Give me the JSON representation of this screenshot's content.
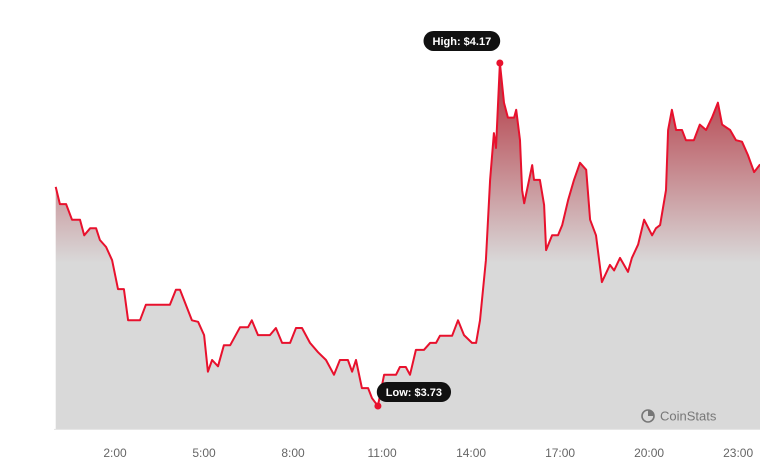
{
  "chart_data": {
    "type": "area",
    "color": "#e8112d",
    "watermark": "CoinStats",
    "xlim": [
      0,
      23.74
    ],
    "ylim": [
      3.7,
      4.22
    ],
    "xticks": [
      {
        "value": 2,
        "label": "2:00"
      },
      {
        "value": 5,
        "label": "5:00"
      },
      {
        "value": 8,
        "label": "8:00"
      },
      {
        "value": 11,
        "label": "11:00"
      },
      {
        "value": 14,
        "label": "14:00"
      },
      {
        "value": 17,
        "label": "17:00"
      },
      {
        "value": 20,
        "label": "20:00"
      },
      {
        "value": 23,
        "label": "23:00"
      }
    ],
    "x": [
      0,
      0.14,
      0.35,
      0.55,
      0.82,
      0.96,
      1.16,
      1.36,
      1.49,
      1.7,
      1.9,
      2.1,
      2.3,
      2.44,
      2.84,
      3.04,
      3.85,
      4.05,
      4.19,
      4.59,
      4.8,
      5.0,
      5.13,
      5.27,
      5.47,
      5.67,
      5.88,
      6.21,
      6.48,
      6.61,
      6.82,
      7.22,
      7.42,
      7.63,
      7.9,
      8.1,
      8.3,
      8.57,
      8.84,
      9.11,
      9.38,
      9.58,
      9.85,
      9.99,
      10.12,
      10.32,
      10.53,
      10.66,
      10.86,
      11.07,
      11.47,
      11.6,
      11.8,
      11.94,
      12.14,
      12.41,
      12.62,
      12.82,
      12.95,
      13.36,
      13.56,
      13.76,
      14.03,
      14.17,
      14.3,
      14.5,
      14.64,
      14.77,
      14.84,
      14.97,
      15.11,
      15.24,
      15.45,
      15.52,
      15.65,
      15.72,
      15.79,
      16.06,
      16.12,
      16.32,
      16.46,
      16.53,
      16.73,
      16.93,
      17.07,
      17.27,
      17.47,
      17.67,
      17.88,
      18.01,
      18.21,
      18.41,
      18.68,
      18.82,
      19.02,
      19.29,
      19.42,
      19.63,
      19.83,
      20.1,
      20.23,
      20.37,
      20.57,
      20.64,
      20.77,
      20.91,
      21.11,
      21.24,
      21.51,
      21.71,
      21.92,
      22.12,
      22.32,
      22.46,
      22.73,
      22.93,
      23.13,
      23.33,
      23.54,
      23.74
    ],
    "values": [
      4.011,
      3.989,
      3.989,
      3.969,
      3.969,
      3.949,
      3.958,
      3.958,
      3.943,
      3.934,
      3.917,
      3.88,
      3.88,
      3.84,
      3.84,
      3.86,
      3.86,
      3.879,
      3.879,
      3.84,
      3.838,
      3.821,
      3.774,
      3.789,
      3.781,
      3.808,
      3.808,
      3.831,
      3.831,
      3.84,
      3.821,
      3.821,
      3.83,
      3.811,
      3.811,
      3.83,
      3.83,
      3.811,
      3.799,
      3.789,
      3.77,
      3.789,
      3.789,
      3.774,
      3.789,
      3.753,
      3.753,
      3.74,
      3.73,
      3.77,
      3.77,
      3.78,
      3.78,
      3.77,
      3.802,
      3.802,
      3.811,
      3.811,
      3.82,
      3.82,
      3.84,
      3.821,
      3.811,
      3.811,
      3.84,
      3.917,
      4.02,
      4.08,
      4.061,
      4.17,
      4.119,
      4.1,
      4.1,
      4.11,
      4.071,
      4.007,
      3.99,
      4.039,
      4.02,
      4.02,
      3.988,
      3.93,
      3.949,
      3.949,
      3.962,
      3.994,
      4.02,
      4.042,
      4.033,
      3.969,
      3.949,
      3.889,
      3.911,
      3.904,
      3.92,
      3.902,
      3.92,
      3.937,
      3.969,
      3.949,
      3.958,
      3.962,
      4.007,
      4.084,
      4.11,
      4.084,
      4.084,
      4.071,
      4.071,
      4.091,
      4.084,
      4.1,
      4.119,
      4.091,
      4.084,
      4.071,
      4.069,
      4.052,
      4.03,
      4.04
    ],
    "annotations": [
      {
        "text": "High: $4.17",
        "x": 14.97,
        "y": 4.17
      },
      {
        "text": "Low: $3.73",
        "x": 10.86,
        "y": 3.73
      }
    ]
  }
}
